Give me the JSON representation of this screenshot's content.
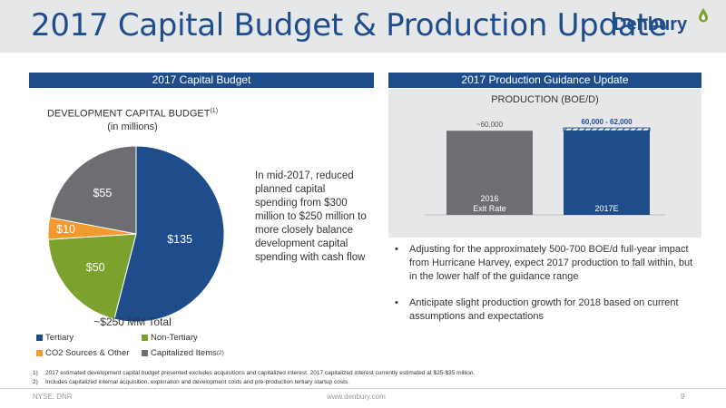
{
  "header": {
    "title": "2017 Capital Budget & Production Update",
    "logo_text": "Denbury"
  },
  "left_panel": {
    "header": "2017 Capital Budget",
    "chart_title": "DEVELOPMENT CAPITAL BUDGET",
    "chart_title_sup": "(1)",
    "chart_subtitle": "(in millions)",
    "total_label": "~$250 MM Total",
    "side_text": "In mid-2017, reduced planned capital spending from $300 million to $250 million to more closely balance development capital spending with cash flow"
  },
  "right_panel": {
    "header": "2017 Production Guidance Update",
    "chart_title": "PRODUCTION (BOE/D)",
    "bullets": [
      "Adjusting for the approximately 500-700 BOE/d full-year impact from Hurricane Harvey, expect 2017 production to fall within, but in the lower half of the guidance range",
      "Anticipate slight production growth for 2018 based on current assumptions and expectations"
    ]
  },
  "chart_data": [
    {
      "type": "pie",
      "title": "DEVELOPMENT CAPITAL BUDGET(1) (in millions)",
      "slices": [
        {
          "label": "Tertiary",
          "value": 135,
          "display": "$135",
          "color": "#1f4d8c"
        },
        {
          "label": "Non-Tertiary",
          "value": 50,
          "display": "$50",
          "color": "#7aa22d"
        },
        {
          "label": "CO2 Sources & Other",
          "value": 10,
          "display": "$10",
          "color": "#f29a2e"
        },
        {
          "label": "Capitalized Items",
          "value": 55,
          "display": "$55",
          "color": "#6d6e71"
        }
      ],
      "legend": [
        {
          "label": "Tertiary",
          "sup": "",
          "color": "#1f4d8c"
        },
        {
          "label": "Non-Tertiary",
          "sup": "",
          "color": "#7aa22d"
        },
        {
          "label": "CO2 Sources & Other",
          "sup": "",
          "color": "#f29a2e"
        },
        {
          "label": "Capitalized Items",
          "sup": "(2)",
          "color": "#6d6e71"
        }
      ],
      "total": "~$250 MM Total"
    },
    {
      "type": "bar",
      "title": "PRODUCTION (BOE/D)",
      "categories": [
        "2016\nExit Rate",
        "2017E"
      ],
      "category_lines": [
        [
          "2016",
          "Exit Rate"
        ],
        [
          "2017E"
        ]
      ],
      "values": [
        60000,
        60000
      ],
      "range_high": [
        null,
        62000
      ],
      "value_labels": [
        "~60,000",
        "60,000 - 62,000"
      ],
      "ylim": [
        0,
        64000
      ],
      "colors": [
        "#6d6e71",
        "#1f4d8c"
      ]
    }
  ],
  "footnotes": [
    {
      "num": "1)",
      "text": "2017 estimated development capital budget presented excludes acquisitions and capitalized interest.  2017 capitalized interest currently estimated at $25-$35 million."
    },
    {
      "num": "2)",
      "text": "Includes capitalized internal acquisition, exploration and development costs and pre-production tertiary startup costs."
    }
  ],
  "footer": {
    "ticker": "NYSE: DNR",
    "url": "www.denbury.com",
    "page": "9"
  }
}
